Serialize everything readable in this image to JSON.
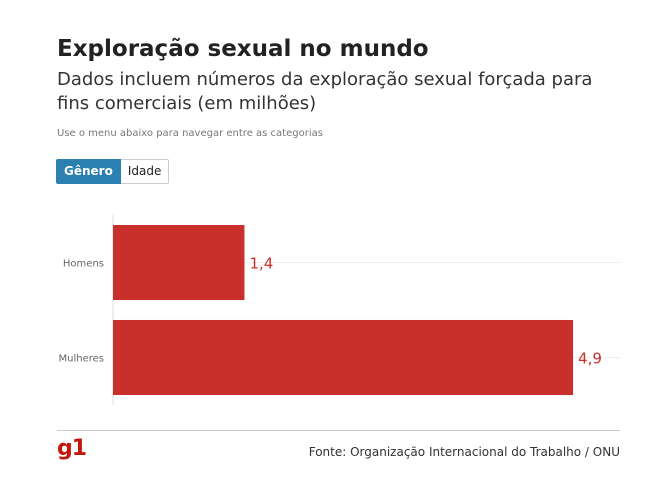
{
  "header": {
    "title": "Exploração sexual no mundo",
    "subtitle": "Dados incluem números da exploração sexual forçada para fins comerciais (em milhões)",
    "instruction": "Use o menu abaixo para navegar entre as categorias"
  },
  "tabs": [
    {
      "label": "Gênero",
      "active": true
    },
    {
      "label": "Idade",
      "active": false
    }
  ],
  "chart_data": {
    "type": "bar",
    "orientation": "horizontal",
    "categories": [
      "Homens",
      "Mulheres"
    ],
    "values": [
      1.4,
      4.9
    ],
    "value_labels": [
      "1,4",
      "4,9"
    ],
    "xlim": [
      0,
      5.4
    ],
    "grid": true,
    "bar_color": "#c9302c",
    "label_color": "#c9302c"
  },
  "footer": {
    "logo": "g1",
    "logo_color": "#c4170c",
    "source": "Fonte: Organização Internacional do Trabalho / ONU"
  }
}
